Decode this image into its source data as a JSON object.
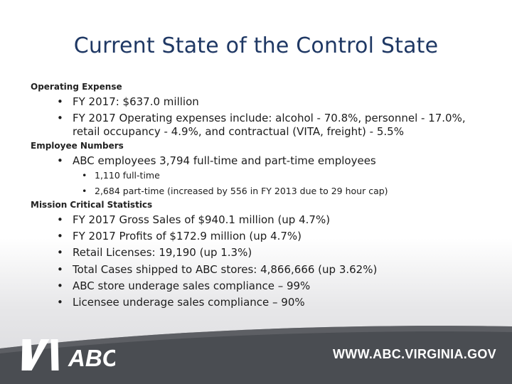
{
  "slide": {
    "title": "Current State of the Control State",
    "sections": {
      "operating": {
        "label": "Operating Expense",
        "bullets": [
          "FY 2017:  $637.0 million",
          "FY 2017 Operating expenses include:  alcohol - 70.8%, personnel - 17.0%, retail occupancy - 4.9%, and contractual (VITA, freight) - 5.5%"
        ]
      },
      "employees": {
        "label": "Employee Numbers",
        "bullet": "ABC employees 3,794 full-time and part-time employees",
        "sub_bullets": [
          "1,110 full-time",
          "2,684 part-time (increased by 556 in FY 2013 due to 29 hour cap)"
        ]
      },
      "mission": {
        "label": "Mission Critical Statistics",
        "bullets": [
          "FY 2017 Gross Sales of $940.1 million (up 4.7%)",
          "FY 2017 Profits of $172.9 million (up 4.7%)",
          "Retail Licenses: 19,190 (up 1.3%)",
          "Total Cases shipped to ABC stores: 4,866,666 (up 3.62%)",
          "ABC store underage sales compliance – 99%",
          "Licensee underage sales compliance – 90%"
        ]
      }
    },
    "bullet_glyph": "•"
  },
  "footer": {
    "logo_text": "ABC",
    "url": "WWW.ABC.VIRGINIA.GOV",
    "band_color": "#4a4d52"
  }
}
